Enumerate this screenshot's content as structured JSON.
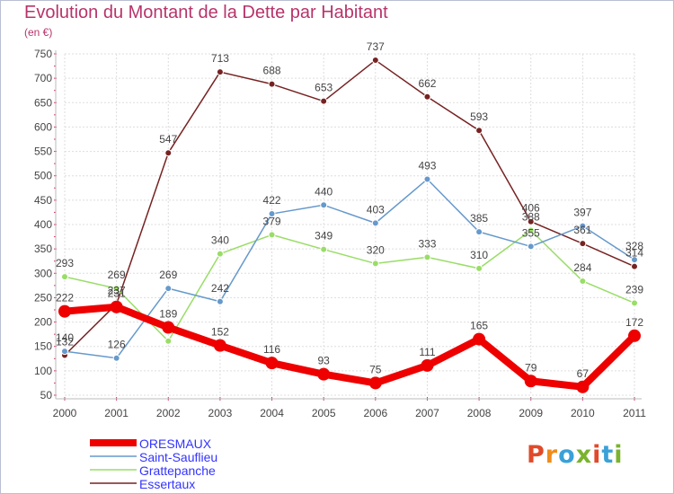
{
  "title": "Evolution du Montant de la Dette par Habitant",
  "unit": "(en €)",
  "logo": "Proxiti",
  "chart_data": {
    "type": "line",
    "title": "Evolution du Montant de la Dette par Habitant",
    "ylabel": "(en €)",
    "x": [
      "2000",
      "2001",
      "2002",
      "2003",
      "2004",
      "2005",
      "2006",
      "2007",
      "2008",
      "2009",
      "2010",
      "2011"
    ],
    "ylim": [
      50,
      750
    ],
    "yticks": [
      50,
      100,
      150,
      200,
      250,
      300,
      350,
      400,
      450,
      500,
      550,
      600,
      650,
      700,
      750
    ],
    "grid": true,
    "legend_position": "bottom-left",
    "series": [
      {
        "name": "Essertaux",
        "color": "#772222",
        "values": [
          132,
          237,
          547,
          713,
          688,
          653,
          737,
          662,
          593,
          406,
          361,
          314
        ]
      },
      {
        "name": "Grattepanche",
        "color": "#99dd66",
        "values": [
          293,
          269,
          161,
          340,
          379,
          349,
          320,
          333,
          310,
          388,
          284,
          239
        ]
      },
      {
        "name": "Saint-Sauflieu",
        "color": "#6699cc",
        "values": [
          140,
          126,
          269,
          242,
          422,
          440,
          403,
          493,
          385,
          355,
          397,
          328
        ]
      },
      {
        "name": "ORESMAUX",
        "color": "#ee0000",
        "values": [
          222,
          231,
          189,
          152,
          116,
          93,
          75,
          111,
          165,
          79,
          67,
          172
        ]
      }
    ],
    "labels": {
      "Essertaux": [
        "132",
        "237",
        "547",
        "713",
        "688",
        "653",
        "737",
        "662",
        "593",
        "406",
        "361",
        "314"
      ],
      "Grattepanche": [
        "293",
        "269",
        "",
        "340",
        "379",
        "349",
        "320",
        "333",
        "310",
        "388",
        "284",
        "239"
      ],
      "Saint-Sauflieu": [
        "140",
        "126",
        "269",
        "242",
        "422",
        "440",
        "403",
        "493",
        "385",
        "355",
        "397",
        "328"
      ],
      "ORESMAUX": [
        "222",
        "231",
        "189",
        "152",
        "116",
        "93",
        "75",
        "111",
        "165",
        "79",
        "67",
        "172"
      ]
    }
  },
  "legend": [
    {
      "name": "ORESMAUX",
      "color": "#ee0000"
    },
    {
      "name": "Saint-Sauflieu",
      "color": "#6699cc"
    },
    {
      "name": "Grattepanche",
      "color": "#99dd66"
    },
    {
      "name": "Essertaux",
      "color": "#772222"
    }
  ],
  "logo_colors": [
    "#e04a2a",
    "#f08c1a",
    "#3aa1d8",
    "#7ab32e",
    "#e04a2a",
    "#3aa1d8",
    "#7ab32e"
  ]
}
